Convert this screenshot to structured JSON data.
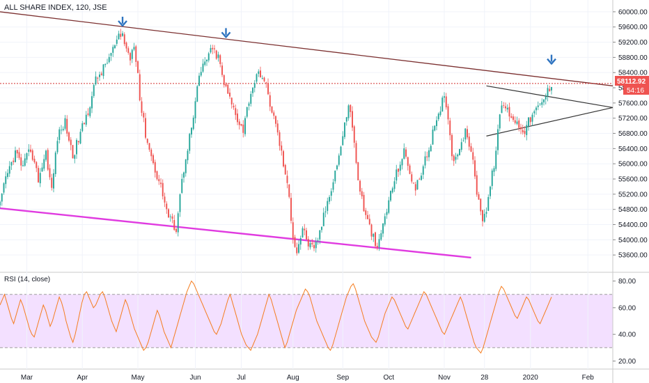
{
  "title": "ALL SHARE INDEX, 120, JSE",
  "price_label": "58112.92",
  "countdown_label": "54:16",
  "rsi_title": "RSI (14, close)",
  "colors": {
    "up": "#26a69a",
    "down": "#ef5350",
    "price_line": "#d32f2f",
    "resistance": "#7b2f2f",
    "support": "#e03be0",
    "triangle": "#333333",
    "arrow": "#2f74c0",
    "rsi_line": "#f57c1f",
    "rsi_band": "#f3e0ff"
  },
  "chart_data": [
    {
      "type": "candlestick",
      "title": "ALL SHARE INDEX, 120, JSE",
      "x_ticks": [
        "Mar",
        "Apr",
        "May",
        "Jun",
        "Jul",
        "Aug",
        "Sep",
        "Oct",
        "Nov",
        "28",
        "2020",
        "Feb"
      ],
      "y_ticks": [
        "53600.00",
        "54000.00",
        "54400.00",
        "54800.00",
        "55200.00",
        "55600.00",
        "56000.00",
        "56400.00",
        "56800.00",
        "57200.00",
        "57600.00",
        "58000.00",
        "58400.00",
        "58800.00",
        "59200.00",
        "59600.00",
        "60000.00"
      ],
      "ylim": [
        53200,
        60200
      ],
      "last_price": 58112.92,
      "close_path": [
        [
          0,
          54900
        ],
        [
          3,
          55600
        ],
        [
          8,
          56300
        ],
        [
          12,
          55900
        ],
        [
          16,
          56400
        ],
        [
          20,
          55600
        ],
        [
          24,
          56300
        ],
        [
          27,
          55300
        ],
        [
          30,
          56700
        ],
        [
          34,
          57100
        ],
        [
          38,
          56200
        ],
        [
          42,
          56800
        ],
        [
          46,
          57400
        ],
        [
          50,
          58200
        ],
        [
          54,
          58500
        ],
        [
          58,
          58900
        ],
        [
          62,
          59300
        ],
        [
          64,
          59400
        ],
        [
          66,
          59000
        ],
        [
          68,
          58800
        ],
        [
          70,
          59200
        ],
        [
          72,
          58400
        ],
        [
          73,
          57700
        ],
        [
          76,
          56800
        ],
        [
          80,
          56000
        ],
        [
          84,
          55400
        ],
        [
          88,
          54600
        ],
        [
          92,
          54300
        ],
        [
          94,
          55200
        ],
        [
          97,
          56200
        ],
        [
          101,
          57200
        ],
        [
          104,
          58300
        ],
        [
          108,
          58800
        ],
        [
          111,
          59000
        ],
        [
          114,
          58800
        ],
        [
          117,
          58100
        ],
        [
          120,
          57700
        ],
        [
          124,
          57200
        ],
        [
          127,
          56900
        ],
        [
          130,
          57700
        ],
        [
          133,
          58200
        ],
        [
          136,
          58400
        ],
        [
          139,
          58000
        ],
        [
          142,
          57400
        ],
        [
          145,
          56800
        ],
        [
          148,
          56000
        ],
        [
          151,
          55100
        ],
        [
          153,
          54100
        ],
        [
          155,
          53700
        ],
        [
          158,
          54300
        ],
        [
          161,
          53900
        ],
        [
          164,
          53700
        ],
        [
          167,
          54200
        ],
        [
          170,
          54800
        ],
        [
          173,
          55400
        ],
        [
          176,
          56000
        ],
        [
          179,
          56700
        ],
        [
          182,
          57600
        ],
        [
          184,
          57000
        ],
        [
          186,
          56000
        ],
        [
          188,
          55300
        ],
        [
          191,
          54600
        ],
        [
          194,
          54200
        ],
        [
          197,
          53700
        ],
        [
          199,
          54200
        ],
        [
          202,
          54800
        ],
        [
          205,
          55400
        ],
        [
          208,
          55900
        ],
        [
          211,
          56300
        ],
        [
          214,
          55800
        ],
        [
          217,
          55300
        ],
        [
          220,
          55800
        ],
        [
          223,
          56200
        ],
        [
          226,
          56800
        ],
        [
          229,
          57200
        ],
        [
          232,
          57900
        ],
        [
          234,
          57200
        ],
        [
          236,
          56300
        ],
        [
          238,
          56100
        ],
        [
          240,
          56500
        ],
        [
          243,
          56800
        ],
        [
          246,
          56400
        ],
        [
          248,
          55600
        ],
        [
          250,
          55000
        ],
        [
          252,
          54600
        ],
        [
          254,
          54800
        ],
        [
          256,
          55400
        ],
        [
          258,
          56000
        ],
        [
          260,
          56800
        ],
        [
          262,
          57600
        ],
        [
          265,
          57400
        ],
        [
          268,
          57200
        ],
        [
          271,
          57000
        ],
        [
          274,
          56900
        ],
        [
          277,
          57200
        ],
        [
          280,
          57400
        ],
        [
          283,
          57600
        ],
        [
          286,
          57900
        ],
        [
          288,
          58100
        ]
      ],
      "trendlines": [
        {
          "name": "resistance",
          "from": [
            0,
            60000
          ],
          "to": [
            320,
            58050
          ]
        },
        {
          "name": "support",
          "from": [
            0,
            54830
          ],
          "to": [
            246,
            53530
          ]
        },
        {
          "name": "triangle-upper",
          "from": [
            254,
            58050
          ],
          "to": [
            320,
            57480
          ]
        },
        {
          "name": "triangle-lower",
          "from": [
            254,
            56730
          ],
          "to": [
            320,
            57480
          ]
        }
      ],
      "arrows": [
        {
          "x": 64,
          "price": 59650
        },
        {
          "x": 118,
          "price": 59350
        },
        {
          "x": 288,
          "price": 58650
        }
      ],
      "x_tick_positions": [
        14,
        43,
        72,
        102,
        126,
        153,
        179,
        203,
        232,
        253,
        277,
        307
      ]
    },
    {
      "type": "line",
      "title": "RSI (14, close)",
      "y_ticks": [
        "20.00",
        "40.00",
        "60.00",
        "80.00"
      ],
      "ylim": [
        15,
        85
      ],
      "bands": [
        30,
        70
      ],
      "values": [
        62,
        66,
        70,
        64,
        58,
        52,
        48,
        54,
        60,
        66,
        62,
        56,
        50,
        44,
        40,
        38,
        44,
        50,
        56,
        62,
        58,
        52,
        46,
        50,
        56,
        62,
        68,
        64,
        58,
        50,
        44,
        38,
        34,
        40,
        48,
        56,
        64,
        70,
        72,
        68,
        64,
        60,
        62,
        66,
        70,
        72,
        68,
        62,
        56,
        50,
        46,
        42,
        48,
        54,
        60,
        66,
        62,
        56,
        50,
        44,
        40,
        36,
        32,
        28,
        30,
        34,
        40,
        46,
        52,
        58,
        54,
        48,
        42,
        38,
        34,
        30,
        36,
        42,
        48,
        54,
        60,
        66,
        72,
        76,
        80,
        78,
        74,
        70,
        66,
        62,
        58,
        54,
        50,
        46,
        42,
        40,
        44,
        48,
        54,
        60,
        66,
        70,
        64,
        58,
        52,
        46,
        40,
        36,
        32,
        30,
        28,
        32,
        36,
        40,
        46,
        52,
        58,
        64,
        70,
        66,
        60,
        54,
        48,
        42,
        36,
        30,
        34,
        40,
        46,
        52,
        58,
        62,
        66,
        70,
        74,
        72,
        68,
        62,
        56,
        50,
        46,
        42,
        38,
        34,
        30,
        28,
        32,
        38,
        44,
        50,
        56,
        62,
        68,
        72,
        76,
        78,
        74,
        68,
        62,
        56,
        50,
        46,
        42,
        38,
        36,
        34,
        38,
        44,
        50,
        56,
        60,
        64,
        68,
        66,
        62,
        58,
        54,
        50,
        46,
        44,
        48,
        52,
        56,
        60,
        64,
        68,
        72,
        70,
        66,
        62,
        58,
        54,
        50,
        46,
        42,
        40,
        44,
        48,
        52,
        56,
        60,
        64,
        68,
        64,
        58,
        52,
        46,
        40,
        34,
        30,
        28,
        26,
        30,
        36,
        42,
        48,
        54,
        60,
        66,
        72,
        76,
        74,
        70,
        66,
        62,
        58,
        54,
        52,
        56,
        60,
        64,
        68,
        66,
        62,
        58,
        54,
        50,
        48,
        52,
        56,
        60,
        64,
        68
      ]
    }
  ]
}
